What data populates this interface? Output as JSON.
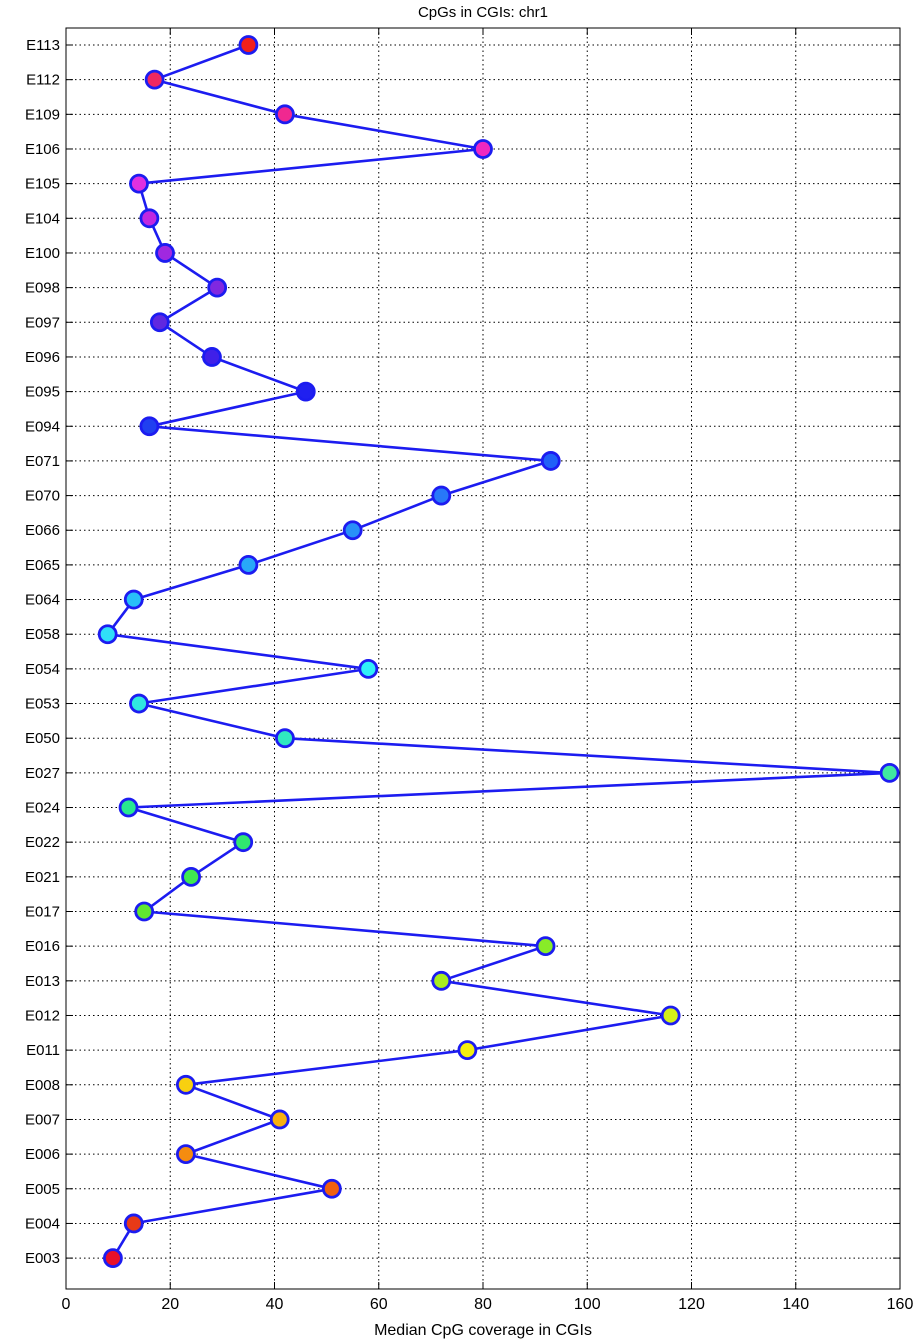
{
  "chart_data": {
    "type": "line",
    "title": "CpGs in CGIs: chr1",
    "xlabel": "Median CpG coverage in CGIs",
    "ylabel": "",
    "xlim": [
      0,
      160
    ],
    "xticks": [
      0,
      20,
      40,
      60,
      80,
      100,
      120,
      140,
      160
    ],
    "grid": true,
    "orientation": "horizontal",
    "categories": [
      "E003",
      "E004",
      "E005",
      "E006",
      "E007",
      "E008",
      "E011",
      "E012",
      "E013",
      "E016",
      "E017",
      "E021",
      "E022",
      "E024",
      "E027",
      "E050",
      "E053",
      "E054",
      "E058",
      "E064",
      "E065",
      "E066",
      "E070",
      "E071",
      "E094",
      "E095",
      "E096",
      "E097",
      "E098",
      "E100",
      "E104",
      "E105",
      "E106",
      "E109",
      "E112",
      "E113"
    ],
    "values": [
      9,
      13,
      51,
      23,
      41,
      23,
      77,
      116,
      72,
      92,
      15,
      24,
      34,
      12,
      158,
      42,
      14,
      58,
      8,
      13,
      35,
      55,
      72,
      93,
      16,
      46,
      28,
      18,
      29,
      19,
      16,
      14,
      80,
      42,
      17,
      35
    ],
    "line_color": "#1c1cf0",
    "marker_colors": [
      "#e8102a",
      "#e83a18",
      "#f06010",
      "#f58c10",
      "#f8b010",
      "#f8d010",
      "#f4f010",
      "#d4f018",
      "#a8ec20",
      "#88ec28",
      "#60e830",
      "#40e850",
      "#30e870",
      "#28e890",
      "#40e8a0",
      "#30e8c0",
      "#30e8e0",
      "#30f0f8",
      "#30e0f8",
      "#28c0f8",
      "#28a8f8",
      "#2890f8",
      "#2878f8",
      "#2060f8",
      "#2040f0",
      "#2020f0",
      "#4020e8",
      "#6028e0",
      "#8028e0",
      "#a028e0",
      "#c028e0",
      "#e030e0",
      "#f028c0",
      "#f02890",
      "#f02860",
      "#f0201c"
    ]
  }
}
